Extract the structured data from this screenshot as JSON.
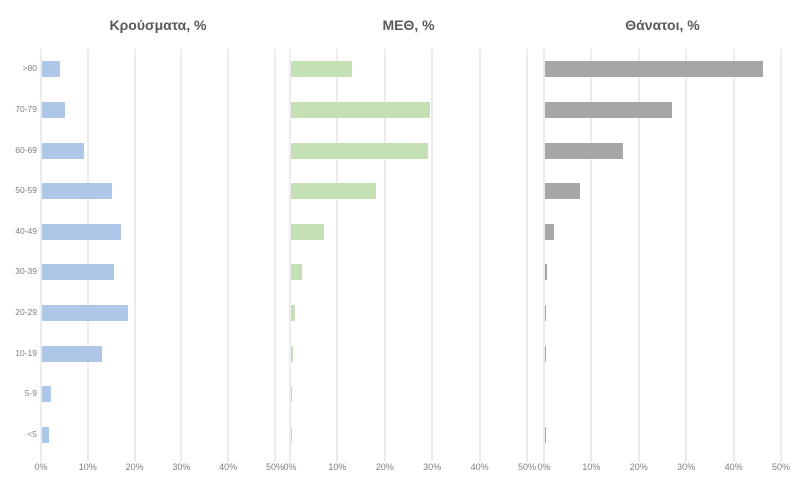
{
  "chart_data": {
    "type": "bar",
    "orientation": "horizontal",
    "grid": true,
    "categories": [
      ">80",
      "70-79",
      "60-69",
      "50-59",
      "40-49",
      "30-39",
      "20-29",
      "10-19",
      "5-9",
      "<5"
    ],
    "x_ticks": [
      "0%",
      "10%",
      "20%",
      "30%",
      "40%",
      "50%"
    ],
    "xlim": [
      0,
      50
    ],
    "charts": [
      {
        "title": "Κρούσματα, %",
        "color": "#aec6e8",
        "values": [
          4,
          5,
          9,
          15,
          17,
          15.5,
          18.5,
          13,
          2,
          1.5
        ]
      },
      {
        "title": "ΜΕΘ, %",
        "color": "#c5e0b4",
        "values": [
          13,
          29.5,
          29,
          18,
          7,
          2.5,
          1,
          0.5,
          0.1,
          0.1
        ]
      },
      {
        "title": "Θάνατοι, %",
        "color": "#a6a6a6",
        "values": [
          46,
          27,
          16.5,
          7.5,
          2,
          0.5,
          0.3,
          0.3,
          0,
          0.3
        ]
      }
    ]
  }
}
